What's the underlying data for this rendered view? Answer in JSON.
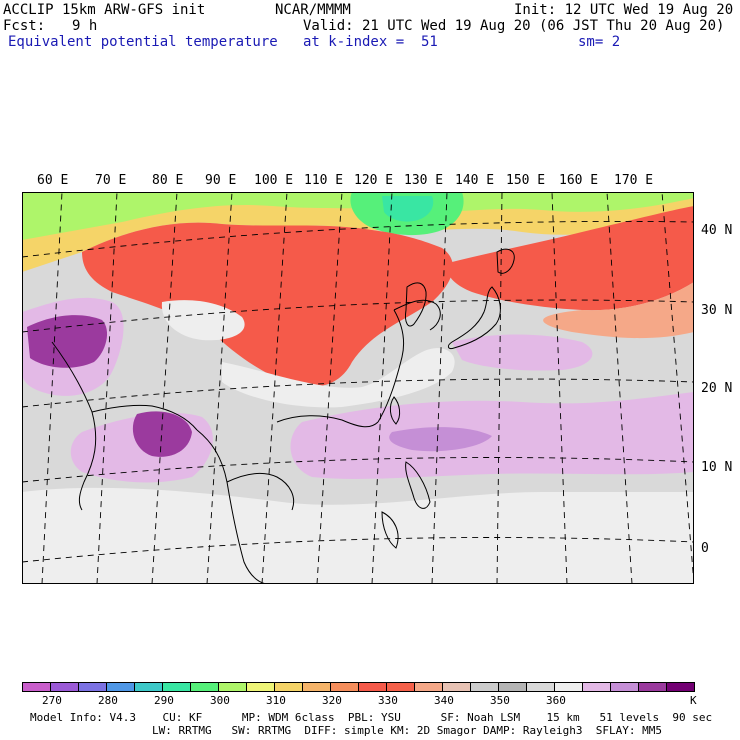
{
  "header": {
    "model_title": "ACCLIP 15km ARW-GFS init",
    "organization": "NCAR/MMMM",
    "init_time": "Init: 12 UTC Wed 19 Aug 20",
    "forecast_label": "Fcst:",
    "forecast_hours": "9 h",
    "valid_time": "Valid: 21 UTC Wed 19 Aug 20 (06 JST Thu 20 Aug 20)",
    "field_name": "Equivalent potential temperature",
    "level": "at k-index =  51",
    "smoothing": "sm= 2"
  },
  "map": {
    "longitude_labels": [
      "60 E",
      "70 E",
      "80 E",
      "90 E",
      "100 E",
      "110 E",
      "120 E",
      "130 E",
      "140 E",
      "150 E",
      "160 E",
      "170 E"
    ],
    "latitude_labels": [
      "40 N",
      "30 N",
      "20 N",
      "10 N",
      "0"
    ]
  },
  "colorbar": {
    "unit": "K",
    "tick_labels": [
      "270",
      "280",
      "290",
      "300",
      "310",
      "320",
      "330",
      "340",
      "350",
      "360"
    ],
    "colors": [
      "#c95ecb",
      "#9b5ad6",
      "#7c72e3",
      "#4f97e6",
      "#3ec9c9",
      "#39e6a3",
      "#56f07a",
      "#aef56a",
      "#eef578",
      "#f5d468",
      "#f5b46a",
      "#f58e5c",
      "#f55a4a",
      "#f5614a",
      "#f5a888",
      "#e7c2b4",
      "#cccccc",
      "#b4b4b4",
      "#d9d9d9",
      "#eeeeee",
      "#e3b9e6",
      "#c58fd6",
      "#9b3a9e",
      "#730073"
    ]
  },
  "footer": {
    "line1": "Model Info: V4.3    CU: KF      MP: WDM 6class  PBL: YSU      SF: Noah LSM    15 km   51 levels  90 sec",
    "line2": "LW: RRTMG   SW: RRTMG  DIFF: simple KM: 2D Smagor DAMP: Rayleigh3  SFLAY: MM5"
  }
}
